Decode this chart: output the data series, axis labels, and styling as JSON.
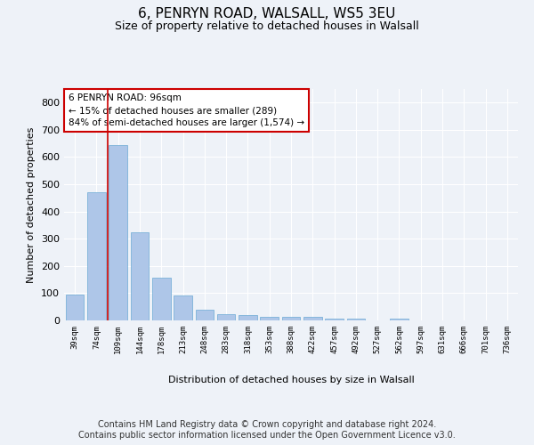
{
  "title": "6, PENRYN ROAD, WALSALL, WS5 3EU",
  "subtitle": "Size of property relative to detached houses in Walsall",
  "xlabel": "Distribution of detached houses by size in Walsall",
  "ylabel": "Number of detached properties",
  "categories": [
    "39sqm",
    "74sqm",
    "109sqm",
    "144sqm",
    "178sqm",
    "213sqm",
    "248sqm",
    "283sqm",
    "318sqm",
    "353sqm",
    "388sqm",
    "422sqm",
    "457sqm",
    "492sqm",
    "527sqm",
    "562sqm",
    "597sqm",
    "631sqm",
    "666sqm",
    "701sqm",
    "736sqm"
  ],
  "values": [
    95,
    470,
    645,
    325,
    158,
    92,
    40,
    23,
    18,
    14,
    14,
    12,
    8,
    5,
    0,
    8,
    0,
    0,
    0,
    0,
    0
  ],
  "bar_color": "#aec6e8",
  "bar_edge_color": "#6aaad4",
  "annotation_text": "6 PENRYN ROAD: 96sqm\n← 15% of detached houses are smaller (289)\n84% of semi-detached houses are larger (1,574) →",
  "annotation_box_color": "#ffffff",
  "annotation_box_edge": "#cc0000",
  "red_line_color": "#cc0000",
  "ylim": [
    0,
    850
  ],
  "yticks": [
    0,
    100,
    200,
    300,
    400,
    500,
    600,
    700,
    800
  ],
  "footer_line1": "Contains HM Land Registry data © Crown copyright and database right 2024.",
  "footer_line2": "Contains public sector information licensed under the Open Government Licence v3.0.",
  "bg_color": "#eef2f8",
  "plot_bg_color": "#eef2f8",
  "grid_color": "#ffffff",
  "title_fontsize": 11,
  "subtitle_fontsize": 9,
  "footer_fontsize": 7
}
